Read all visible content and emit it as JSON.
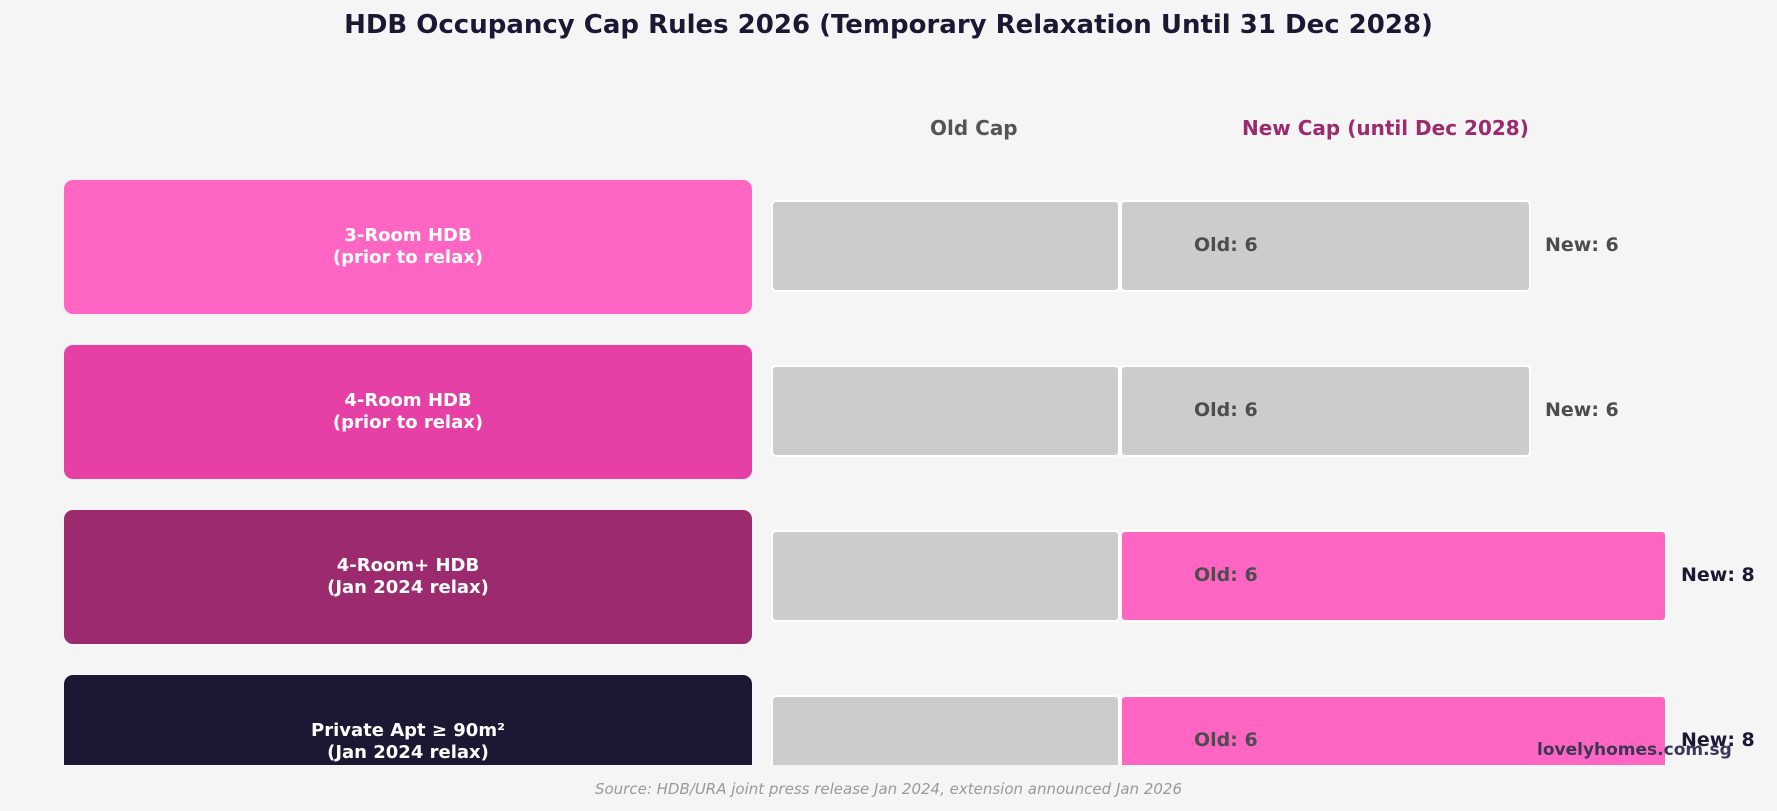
{
  "chart_data": {
    "type": "bar",
    "title": "HDB Occupancy Cap Rules 2026 (Temporary Relaxation Until 31 Dec 2028)",
    "column_headers": {
      "old": "Old Cap",
      "new": "New Cap (until Dec 2028)"
    },
    "categories": [
      {
        "line1": "3-Room HDB",
        "line2": "(prior to relax)"
      },
      {
        "line1": "4-Room HDB",
        "line2": "(prior to relax)"
      },
      {
        "line1": "4-Room+ HDB",
        "line2": "(Jan 2024 relax)"
      },
      {
        "line1": "Private Apt ≥ 90m²",
        "line2": "(Jan 2024 relax)"
      }
    ],
    "series": [
      {
        "name": "Old Cap",
        "values": [
          6,
          6,
          6,
          6
        ]
      },
      {
        "name": "New Cap (until Dec 2028)",
        "values": [
          6,
          6,
          8,
          8
        ]
      }
    ],
    "old_labels": [
      "Old: 6",
      "Old: 6",
      "Old: 6",
      "Old: 6"
    ],
    "new_labels": [
      "New: 6",
      "New: 6",
      "New: 8",
      "New: 8"
    ],
    "category_colors": [
      "#ff66c4",
      "#e63fa6",
      "#9b2a6e",
      "#1c1833"
    ],
    "bar_colors": {
      "unchanged": "#cccccc",
      "increased": "#ff66c4"
    },
    "label_colors": {
      "unchanged": "#4d4d4d",
      "increased": "#1c1833"
    },
    "source": "Source: HDB/URA joint press release Jan 2024, extension announced Jan 2026",
    "watermark": "lovelyhomes.com.sg"
  }
}
